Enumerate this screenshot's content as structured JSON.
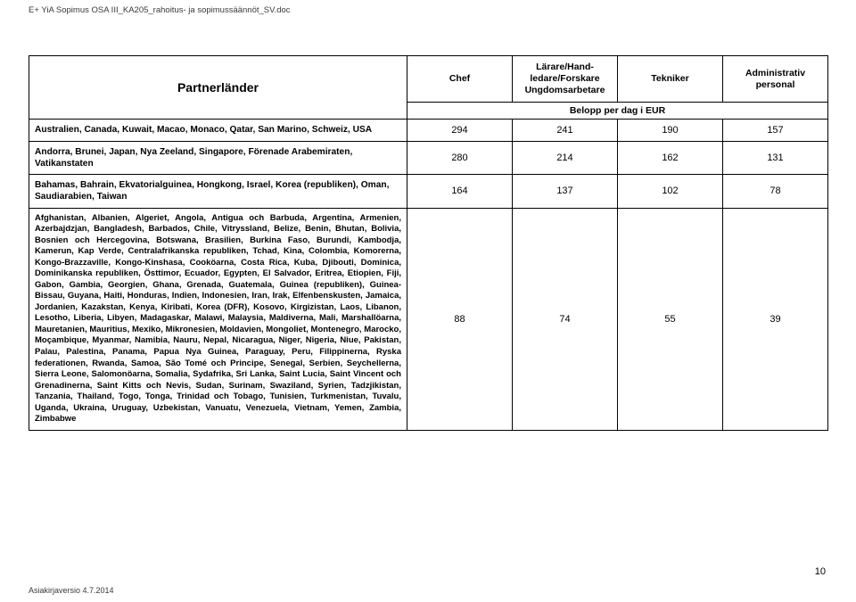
{
  "doc": {
    "header_path": "E+ YiA Sopimus OSA III_KA205_rahoitus- ja sopimussäännöt_SV.doc",
    "footer_left": "Asiakirjaversio 4.7.2014",
    "page_number": "10"
  },
  "table": {
    "title": "Partnerländer",
    "columns": {
      "chef": "Chef",
      "larare": "Lärare/Hand-\nledare/Forskare\nUngdomsarbetare",
      "tekniker": "Tekniker",
      "admin": "Administrativ\npersonal"
    },
    "subheader": "Belopp per dag i EUR",
    "rows": [
      {
        "label": "Australien, Canada, Kuwait, Macao, Monaco, Qatar, San Marino, Schweiz, USA",
        "chef": "294",
        "larare": "241",
        "tekniker": "190",
        "admin": "157"
      },
      {
        "label": "Andorra, Brunei, Japan, Nya Zeeland, Singapore, Förenade Arabemiraten, Vatikanstaten",
        "chef": "280",
        "larare": "214",
        "tekniker": "162",
        "admin": "131"
      },
      {
        "label": "Bahamas, Bahrain, Ekvatorialguinea, Hongkong, Israel, Korea (republiken), Oman, Saudiarabien, Taiwan",
        "chef": "164",
        "larare": "137",
        "tekniker": "102",
        "admin": "78"
      },
      {
        "label": "Afghanistan, Albanien, Algeriet, Angola, Antigua och Barbuda, Argentina, Armenien, Azerbajdzjan, Bangladesh, Barbados, Chile, Vitryssland, Belize, Benin, Bhutan, Bolivia, Bosnien och Hercegovina, Botswana, Brasilien, Burkina Faso, Burundi, Kambodja, Kamerun, Kap Verde, Centralafrikanska republiken, Tchad, Kina, Colombia, Komorerna, Kongo-Brazzaville, Kongo-Kinshasa, Cooköarna, Costa Rica, Kuba, Djibouti, Dominica, Dominikanska republiken, Östtimor, Ecuador, Egypten, El Salvador, Eritrea, Etiopien, Fiji, Gabon, Gambia, Georgien, Ghana, Grenada, Guatemala, Guinea (republiken), Guinea-Bissau, Guyana, Haiti, Honduras, Indien, Indonesien, Iran, Irak, Elfenbenskusten, Jamaica, Jordanien, Kazakstan, Kenya, Kiribati, Korea (DFR), Kosovo, Kirgizistan, Laos, Libanon, Lesotho, Liberia, Libyen, Madagaskar, Malawi, Malaysia, Maldiverna, Mali, Marshallöarna, Mauretanien, Mauritius, Mexiko, Mikronesien, Moldavien, Mongoliet, Montenegro, Marocko, Moçambique, Myanmar, Namibia, Nauru, Nepal, Nicaragua, Niger, Nigeria, Niue, Pakistan, Palau, Palestina, Panama, Papua Nya Guinea, Paraguay, Peru, Filippinerna, Ryska federationen, Rwanda, Samoa, São Tomé och Principe, Senegal, Serbien, Seychellerna, Sierra Leone, Salomonöarna, Somalia, Sydafrika, Sri Lanka, Saint Lucia, Saint Vincent och Grenadinerna, Saint Kitts och Nevis, Sudan, Surinam, Swaziland, Syrien, Tadzjikistan, Tanzania, Thailand, Togo, Tonga, Trinidad och Tobago, Tunisien, Turkmenistan, Tuvalu, Uganda, Ukraina, Uruguay, Uzbekistan, Vanuatu, Venezuela, Vietnam, Yemen, Zambia, Zimbabwe",
        "chef": "88",
        "larare": "74",
        "tekniker": "55",
        "admin": "39"
      }
    ]
  },
  "style": {
    "background_color": "#ffffff",
    "text_color": "#000000",
    "border_color": "#000000",
    "header_text_color": "#3a3a3a",
    "font_family": "Arial"
  }
}
